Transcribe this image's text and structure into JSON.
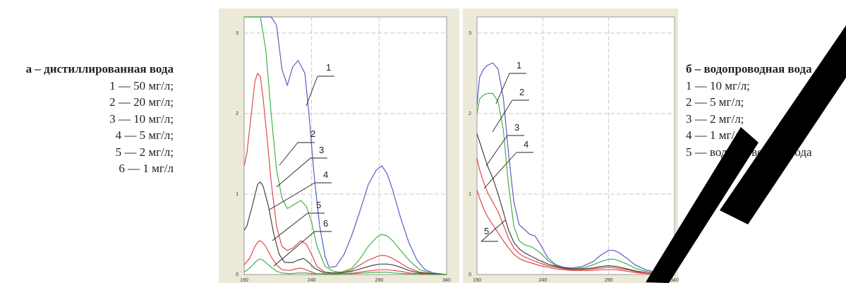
{
  "panel_a": {
    "title": "а – дистиллированная вода",
    "items": [
      "1 — 50 мг/л;",
      "2 — 20 мг/л;",
      "3 — 10 мг/л;",
      "4 — 5 мг/л;",
      "5 — 2 мг/л;",
      "6 — 1 мг/л"
    ]
  },
  "panel_b": {
    "title": "б – водопроводная вода",
    "items": [
      "1 — 10 мг/л;",
      "2 — 5 мг/л;",
      "3 — 2 мг/л;",
      "4 — 1 мг/л;",
      "5 — водопроводная вода"
    ]
  },
  "colors": {
    "blue": "#5b5bc8",
    "green": "#45b045",
    "red": "#e04848",
    "black": "#444444",
    "panel_bg": "#ece9d8"
  },
  "chart_data": [
    {
      "type": "line",
      "xlim": [
        190,
        340
      ],
      "ylim": [
        0,
        3.2
      ],
      "x_ticks": [
        "190",
        "240",
        "290",
        "340"
      ],
      "y_ticks": [
        "0",
        "1",
        "2",
        "3"
      ],
      "grid": true,
      "annotations": [
        "1",
        "2",
        "3",
        "4",
        "5",
        "6"
      ],
      "series": [
        {
          "color": "#5b5bc8",
          "x": [
            190,
            196,
            203,
            205,
            210,
            214,
            218,
            222,
            226,
            230,
            235,
            238,
            242,
            246,
            250,
            253,
            258,
            264,
            270,
            276,
            282,
            288,
            292,
            296,
            300,
            306,
            312,
            318,
            324,
            330,
            340
          ],
          "y": [
            3.2,
            3.2,
            3.2,
            3.2,
            3.2,
            3.1,
            2.55,
            2.35,
            2.58,
            2.66,
            2.5,
            2.0,
            1.2,
            0.6,
            0.22,
            0.09,
            0.1,
            0.25,
            0.5,
            0.8,
            1.12,
            1.3,
            1.35,
            1.25,
            1.05,
            0.7,
            0.4,
            0.18,
            0.06,
            0.02,
            0.0
          ]
        },
        {
          "color": "#45b045",
          "x": [
            190,
            198,
            200,
            202,
            206,
            210,
            214,
            218,
            222,
            228,
            232,
            236,
            240,
            244,
            250,
            256,
            262,
            270,
            276,
            282,
            288,
            292,
            296,
            300,
            306,
            312,
            320,
            330,
            340
          ],
          "y": [
            3.2,
            3.2,
            3.2,
            3.2,
            2.8,
            2.0,
            1.3,
            0.95,
            0.82,
            0.88,
            0.92,
            0.85,
            0.65,
            0.35,
            0.1,
            0.04,
            0.03,
            0.08,
            0.2,
            0.35,
            0.46,
            0.5,
            0.48,
            0.42,
            0.3,
            0.18,
            0.06,
            0.01,
            0.0
          ]
        },
        {
          "color": "#e04848",
          "x": [
            190,
            192,
            195,
            198,
            200,
            202,
            204,
            207,
            210,
            214,
            218,
            222,
            226,
            232,
            236,
            240,
            244,
            250,
            256,
            262,
            270,
            276,
            282,
            288,
            292,
            296,
            300,
            306,
            312,
            320,
            330,
            340
          ],
          "y": [
            1.35,
            1.5,
            1.95,
            2.4,
            2.5,
            2.46,
            2.2,
            1.7,
            1.15,
            0.6,
            0.35,
            0.3,
            0.33,
            0.42,
            0.38,
            0.25,
            0.1,
            0.03,
            0.02,
            0.02,
            0.06,
            0.12,
            0.18,
            0.22,
            0.24,
            0.23,
            0.2,
            0.14,
            0.08,
            0.03,
            0.01,
            0.0
          ]
        },
        {
          "color": "#444444",
          "x": [
            190,
            192,
            196,
            200,
            202,
            204,
            208,
            212,
            216,
            220,
            226,
            230,
            234,
            238,
            242,
            248,
            254,
            262,
            270,
            278,
            284,
            290,
            296,
            300,
            306,
            312,
            320,
            330,
            340
          ],
          "y": [
            0.55,
            0.6,
            0.85,
            1.12,
            1.15,
            1.1,
            0.85,
            0.5,
            0.25,
            0.15,
            0.15,
            0.18,
            0.2,
            0.15,
            0.08,
            0.03,
            0.02,
            0.02,
            0.04,
            0.08,
            0.11,
            0.13,
            0.13,
            0.12,
            0.09,
            0.05,
            0.02,
            0.01,
            0.0
          ]
        },
        {
          "color": "#e04848",
          "x": [
            190,
            194,
            198,
            201,
            203,
            206,
            210,
            214,
            218,
            224,
            228,
            232,
            236,
            240,
            244,
            250,
            256,
            264,
            272,
            280,
            286,
            290,
            296,
            300,
            306,
            312,
            320,
            330,
            340
          ],
          "y": [
            0.12,
            0.2,
            0.35,
            0.42,
            0.41,
            0.35,
            0.22,
            0.12,
            0.06,
            0.05,
            0.07,
            0.08,
            0.06,
            0.03,
            0.01,
            0.01,
            0.01,
            0.01,
            0.02,
            0.04,
            0.05,
            0.06,
            0.06,
            0.05,
            0.04,
            0.02,
            0.01,
            0.0,
            0.0
          ]
        },
        {
          "color": "#45b045",
          "x": [
            190,
            194,
            198,
            201,
            203,
            206,
            210,
            214,
            218,
            224,
            230,
            236,
            240,
            250,
            260,
            270,
            280,
            290,
            296,
            300,
            310,
            320,
            330,
            340
          ],
          "y": [
            0.03,
            0.08,
            0.15,
            0.19,
            0.19,
            0.15,
            0.09,
            0.04,
            0.02,
            0.01,
            0.02,
            0.02,
            0.01,
            0.0,
            0.0,
            0.01,
            0.02,
            0.03,
            0.03,
            0.02,
            0.01,
            0.0,
            0.0,
            0.0
          ]
        }
      ]
    },
    {
      "type": "line",
      "xlim": [
        190,
        340
      ],
      "ylim": [
        0,
        3.2
      ],
      "x_ticks": [
        "190",
        "240",
        "290",
        "340"
      ],
      "y_ticks": [
        "0",
        "1",
        "2",
        "3"
      ],
      "grid": true,
      "annotations": [
        "1",
        "2",
        "3",
        "4",
        "5"
      ],
      "series": [
        {
          "color": "#5b5bc8",
          "x": [
            190,
            192,
            195,
            198,
            202,
            206,
            210,
            214,
            218,
            222,
            226,
            230,
            234,
            238,
            244,
            250,
            256,
            262,
            270,
            278,
            284,
            290,
            294,
            298,
            304,
            310,
            318,
            326,
            334,
            340
          ],
          "y": [
            2.1,
            2.45,
            2.55,
            2.6,
            2.63,
            2.55,
            2.2,
            1.5,
            0.9,
            0.62,
            0.56,
            0.5,
            0.48,
            0.38,
            0.2,
            0.12,
            0.09,
            0.08,
            0.1,
            0.16,
            0.24,
            0.3,
            0.3,
            0.27,
            0.2,
            0.12,
            0.06,
            0.03,
            0.01,
            0.0
          ]
        },
        {
          "color": "#45b045",
          "x": [
            190,
            192,
            195,
            198,
            202,
            206,
            210,
            214,
            218,
            222,
            226,
            232,
            238,
            244,
            250,
            256,
            262,
            270,
            278,
            284,
            290,
            294,
            298,
            304,
            310,
            318,
            326,
            334,
            340
          ],
          "y": [
            2.0,
            2.18,
            2.23,
            2.25,
            2.25,
            2.15,
            1.8,
            1.1,
            0.6,
            0.42,
            0.37,
            0.34,
            0.27,
            0.17,
            0.11,
            0.08,
            0.07,
            0.08,
            0.12,
            0.16,
            0.19,
            0.19,
            0.17,
            0.13,
            0.08,
            0.04,
            0.02,
            0.01,
            0.0
          ]
        },
        {
          "color": "#444444",
          "x": [
            190,
            192,
            195,
            198,
            202,
            206,
            210,
            214,
            218,
            222,
            226,
            232,
            238,
            244,
            250,
            256,
            262,
            270,
            278,
            284,
            290,
            296,
            304,
            312,
            320,
            330,
            340
          ],
          "y": [
            1.75,
            1.65,
            1.5,
            1.35,
            1.2,
            1.0,
            0.78,
            0.55,
            0.4,
            0.32,
            0.27,
            0.22,
            0.17,
            0.13,
            0.1,
            0.08,
            0.07,
            0.07,
            0.08,
            0.1,
            0.11,
            0.1,
            0.07,
            0.04,
            0.02,
            0.01,
            0.0
          ]
        },
        {
          "color": "#e04848",
          "x": [
            190,
            192,
            195,
            198,
            202,
            206,
            210,
            214,
            218,
            222,
            226,
            232,
            238,
            244,
            250,
            256,
            262,
            270,
            278,
            284,
            290,
            296,
            304,
            312,
            320,
            330,
            340
          ],
          "y": [
            1.45,
            1.3,
            1.15,
            1.02,
            0.9,
            0.78,
            0.62,
            0.45,
            0.33,
            0.26,
            0.22,
            0.18,
            0.14,
            0.11,
            0.09,
            0.07,
            0.06,
            0.06,
            0.07,
            0.08,
            0.09,
            0.08,
            0.06,
            0.03,
            0.02,
            0.01,
            0.0
          ]
        },
        {
          "color": "#e04848",
          "x": [
            190,
            192,
            195,
            198,
            202,
            206,
            210,
            214,
            218,
            222,
            226,
            232,
            238,
            244,
            250,
            256,
            262,
            270,
            278,
            284,
            290,
            296,
            304,
            312,
            320,
            330,
            340
          ],
          "y": [
            1.05,
            0.95,
            0.82,
            0.72,
            0.62,
            0.52,
            0.42,
            0.33,
            0.25,
            0.2,
            0.17,
            0.14,
            0.11,
            0.09,
            0.07,
            0.06,
            0.05,
            0.05,
            0.05,
            0.06,
            0.06,
            0.06,
            0.04,
            0.02,
            0.01,
            0.01,
            0.0
          ]
        }
      ]
    }
  ]
}
